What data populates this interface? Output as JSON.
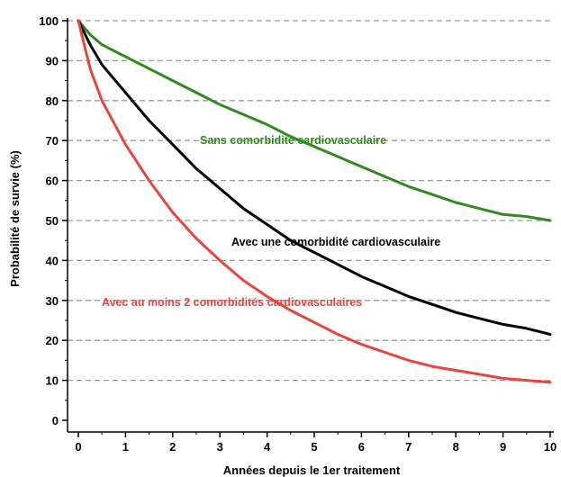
{
  "chart_data": {
    "type": "line",
    "title": "",
    "xlabel": "Années depuis le 1er traitement",
    "ylabel": "Probabilité de survie (%)",
    "xlim": [
      0,
      10
    ],
    "ylim": [
      0,
      100
    ],
    "x_ticks": [
      0,
      1,
      2,
      3,
      4,
      5,
      6,
      7,
      8,
      9,
      10
    ],
    "y_ticks": [
      0,
      10,
      20,
      30,
      40,
      50,
      60,
      70,
      80,
      90,
      100
    ],
    "grid": "horizontal dashed",
    "legend": "inline labels",
    "series": [
      {
        "name": "Sans comorbidité cardiovasculaire",
        "color": "#2e8b1e",
        "x": [
          0,
          0.25,
          0.5,
          1,
          1.5,
          2,
          2.5,
          3,
          3.5,
          4,
          4.5,
          5,
          5.5,
          6,
          6.5,
          7,
          7.5,
          8,
          8.5,
          9,
          9.5,
          10
        ],
        "values": [
          100,
          96.5,
          94,
          91,
          88,
          85,
          82,
          79,
          76.5,
          74,
          71,
          68.5,
          66,
          63.5,
          61,
          58.5,
          56.5,
          54.5,
          53,
          51.5,
          51,
          50
        ]
      },
      {
        "name": "Avec une comorbidité cardiovasculaire",
        "color": "#000000",
        "x": [
          0,
          0.25,
          0.5,
          1,
          1.5,
          2,
          2.5,
          3,
          3.5,
          4,
          4.5,
          5,
          5.5,
          6,
          6.5,
          7,
          7.5,
          8,
          8.5,
          9,
          9.5,
          10
        ],
        "values": [
          100,
          94,
          89,
          82,
          75,
          69,
          63,
          58,
          53,
          49,
          45,
          42,
          39,
          36,
          33.5,
          31,
          29,
          27,
          25.5,
          24,
          23,
          21.5
        ]
      },
      {
        "name": "Avec au moins 2 comorbidités cardiovasculaires",
        "color": "#e8453c",
        "x": [
          0,
          0.25,
          0.5,
          1,
          1.5,
          2,
          2.5,
          3,
          3.5,
          4,
          4.5,
          5,
          5.5,
          6,
          6.5,
          7,
          7.5,
          8,
          8.5,
          9,
          9.5,
          10
        ],
        "values": [
          100,
          88,
          80,
          69,
          60,
          52,
          45.5,
          40,
          35,
          31,
          27.5,
          24.5,
          21.5,
          19,
          17,
          15,
          13.5,
          12.5,
          11.5,
          10.5,
          10,
          9.5
        ]
      }
    ]
  }
}
